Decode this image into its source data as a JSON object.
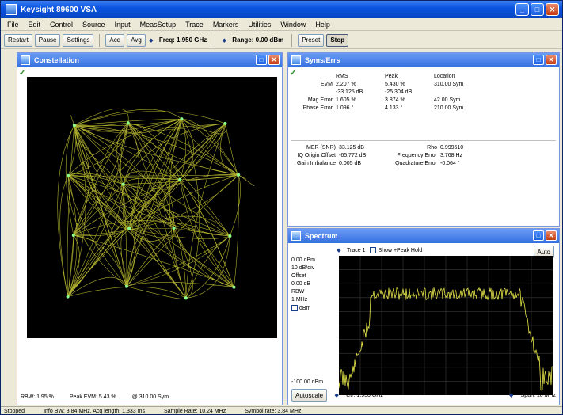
{
  "app": {
    "title": "Keysight 89600 VSA"
  },
  "menu": [
    "File",
    "Edit",
    "Control",
    "Source",
    "Input",
    "MeasSetup",
    "Trace",
    "Markers",
    "Utilities",
    "Window",
    "Help"
  ],
  "toolbar": {
    "buttons": [
      "Restart",
      "Pause",
      "Settings"
    ],
    "freq_label": "Freq: 1.950 GHz",
    "range_label": "Range: 0.00 dBm",
    "acq_btn": "Acq",
    "avg_btn": "Avg",
    "preset_btn": "Preset",
    "stop_btn": "Stop"
  },
  "constellation": {
    "title": "Constellation",
    "checkmark": "✓",
    "footer": [
      "RBW: 1.95 %",
      "Peak EVM: 5.43 %",
      "@ 310.00 Sym"
    ]
  },
  "metrics": {
    "title": "Syms/Errs",
    "checkmark": "✓",
    "header": [
      "",
      "RMS",
      "Peak",
      "Location"
    ],
    "rows": [
      [
        "EVM",
        "2.207 %",
        "5.430 %",
        "310.00 Sym"
      ],
      [
        "",
        "-33.125 dB",
        "-25.304 dB",
        ""
      ],
      [
        "Mag Error",
        "1.605 %",
        "3.874 %",
        "42.00 Sym"
      ],
      [
        "Phase Error",
        "1.096 °",
        "4.133 °",
        "210.00 Sym"
      ]
    ],
    "extra": [
      [
        "MER (SNR)",
        "33.125 dB",
        "Rho",
        "0.999510"
      ],
      [
        "IQ Origin Offset",
        "-65.772 dB",
        "Frequency Error",
        "3.768 Hz"
      ],
      [
        "Gain Imbalance",
        "0.005 dB",
        "Quadrature Error",
        "-0.064 °"
      ]
    ]
  },
  "spectrum": {
    "title": "Spectrum",
    "trace_label": "Trace 1",
    "show_label": "Show +Peak Hold",
    "auto_btn": "Auto",
    "left_labels": [
      "10 dB/div",
      "Offset",
      "0.00 dB",
      "RBW",
      "1 MHz",
      "dBm"
    ],
    "ref_label": "0.00 dBm",
    "bottom_label": "-100.00 dBm",
    "bottom_btn": "Autoscale",
    "center": "Ctr: 1.950 GHz",
    "span": "Span: 10 MHz",
    "colors": {
      "trace": "#e6e64a",
      "grid": "#3a3a3a"
    }
  },
  "status": [
    "Stopped",
    "Info BW: 3.84 MHz, Acq length: 1.333 ms",
    "Sample Rate: 10.24 MHz",
    "Symbol rate: 3.84 MHz"
  ]
}
